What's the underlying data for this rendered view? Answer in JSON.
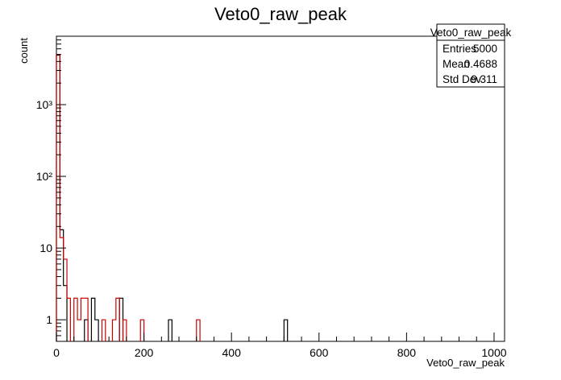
{
  "chart_data": {
    "type": "histogram",
    "title": "Veto0_raw_peak",
    "xlabel": "Veto0_raw_peak",
    "ylabel": "count",
    "xlim": [
      0,
      1024
    ],
    "ylim": [
      0.5,
      9000
    ],
    "yscale": "log",
    "bin_width": 8,
    "grid": false,
    "legend": "none",
    "x_ticks": [
      0,
      200,
      400,
      600,
      800,
      1000
    ],
    "y_ticks": [
      {
        "value": 1,
        "label": "1"
      },
      {
        "value": 10,
        "label": "10"
      },
      {
        "value": 100,
        "label": "10²"
      },
      {
        "value": 1000,
        "label": "10³"
      }
    ],
    "series": [
      {
        "color": "#000000",
        "bins": [
          {
            "x": 0,
            "y": 4900
          },
          {
            "x": 8,
            "y": 18
          },
          {
            "x": 16,
            "y": 3
          },
          {
            "x": 64,
            "y": 1
          },
          {
            "x": 80,
            "y": 2
          },
          {
            "x": 88,
            "y": 1
          },
          {
            "x": 144,
            "y": 2
          },
          {
            "x": 256,
            "y": 1
          },
          {
            "x": 520,
            "y": 1
          }
        ]
      },
      {
        "color": "#cc0000",
        "bins": [
          {
            "x": 0,
            "y": 5000
          },
          {
            "x": 8,
            "y": 14
          },
          {
            "x": 16,
            "y": 7
          },
          {
            "x": 24,
            "y": 2
          },
          {
            "x": 40,
            "y": 2
          },
          {
            "x": 48,
            "y": 1
          },
          {
            "x": 56,
            "y": 2
          },
          {
            "x": 64,
            "y": 2
          },
          {
            "x": 104,
            "y": 1
          },
          {
            "x": 128,
            "y": 1
          },
          {
            "x": 136,
            "y": 2
          },
          {
            "x": 152,
            "y": 1
          },
          {
            "x": 192,
            "y": 1
          },
          {
            "x": 320,
            "y": 1
          }
        ]
      }
    ],
    "stats_box": {
      "name": "Veto0_raw_peak",
      "rows": [
        {
          "label": "Entries",
          "value": "5000"
        },
        {
          "label": "Mean",
          "value": "0.4688"
        },
        {
          "label": "Std Dev",
          "value": "9.311"
        }
      ]
    }
  }
}
